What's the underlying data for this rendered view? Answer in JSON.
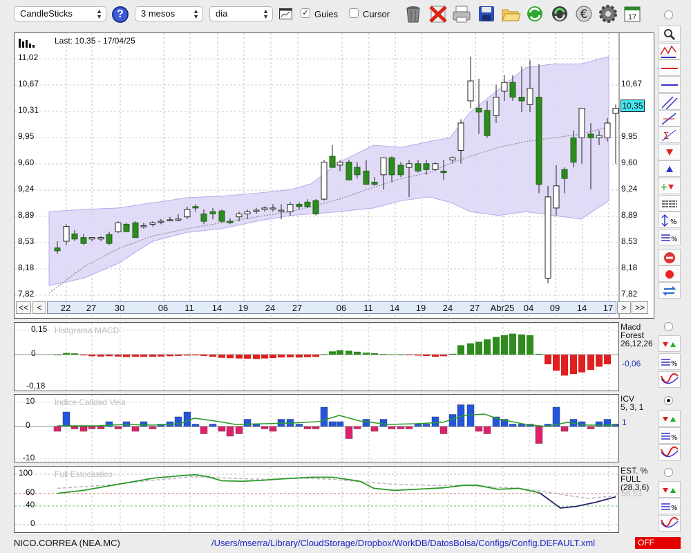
{
  "toolbar": {
    "chart_type": "CandleSticks",
    "help": "?",
    "period": "3 mesos",
    "interval": "dia",
    "guides_label": "Guies",
    "guides_checked": true,
    "cursor_label": "Cursor",
    "cursor_checked": false,
    "calendar_day": "17",
    "icons": [
      "grid-icon",
      "trash-icon",
      "delete-icon",
      "print-icon",
      "save-icon",
      "open-folder-icon",
      "refresh-icon",
      "sync-icon",
      "currency-icon",
      "settings-icon",
      "calendar-icon"
    ]
  },
  "main_chart": {
    "info": "Last: 10.35 - 17/04/25",
    "price_label": "10,35",
    "y_ticks": [
      "11,02",
      "10,67",
      "10,31",
      "9,95",
      "9,60",
      "9,24",
      "8,89",
      "8,53",
      "8,18",
      "7,82"
    ],
    "x_ticks": [
      "22",
      "27",
      "30",
      "06",
      "11",
      "14",
      "19",
      "24",
      "27",
      "06",
      "11",
      "14",
      "19",
      "24",
      "27",
      "Abr25",
      "04",
      "09",
      "14",
      "17"
    ],
    "nav": [
      "<<",
      "<",
      ">",
      ">>"
    ]
  },
  "macd": {
    "title": "Histgrama MACD",
    "y_ticks": [
      "0,15",
      "0",
      "-0,18"
    ],
    "legend": [
      "Macd",
      "Forest",
      "26,12,26"
    ],
    "value": "-0,06"
  },
  "icv": {
    "title": "Indice Calidad Vela",
    "y_ticks": [
      "10",
      "0",
      "-10"
    ],
    "legend": [
      "ICV",
      "5, 3, 1"
    ],
    "value": "1"
  },
  "stoch": {
    "title": "Full Estocastico",
    "y_ticks": [
      "100",
      "60",
      "40",
      "0"
    ],
    "legend": [
      "EST. %",
      "FULL",
      "(28,3,6)"
    ],
    "value": "56,53"
  },
  "footer": {
    "ticker": "NICO.CORREA (NEA.MC)",
    "path": "/Users/mserra/Library/CloudStorage/Dropbox/WorkDB/DatosBolsa/Configs/Config.DEFAULT.xml",
    "status": "OFF"
  },
  "colors": {
    "up": "#2e8b1e",
    "down": "#e02020",
    "blue": "#2255dd",
    "pink": "#e0206a",
    "band": "#ddd5f7"
  }
}
